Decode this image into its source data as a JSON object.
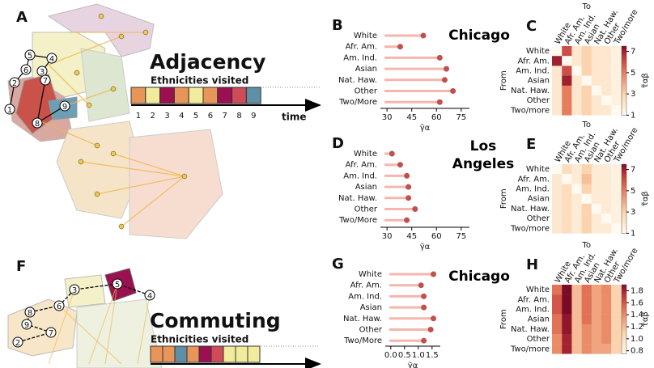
{
  "panel_a": {
    "letter": "A",
    "nodes": [
      "1",
      "2",
      "3",
      "4",
      "5",
      "6",
      "7",
      "8",
      "9"
    ]
  },
  "panel_f": {
    "letter": "F",
    "nodes": [
      "2",
      "3",
      "4",
      "5",
      "6",
      "7",
      "8",
      "9"
    ]
  },
  "adjacency": {
    "title": "Adjacency",
    "subtitle": "Ethnicities visited",
    "steps": [
      1,
      2,
      3,
      4,
      5,
      6,
      7,
      8,
      9
    ],
    "colors": [
      "#e8955a",
      "#f1ec9c",
      "#9b1050",
      "#e8955a",
      "#f1ec9c",
      "#e8955a",
      "#9b1050",
      "#cf4b58",
      "#5e8fa6"
    ],
    "axis_label": "time"
  },
  "commuting": {
    "title": "Commuting",
    "subtitle": "Ethnicities visited",
    "colors": [
      "#e8955a",
      "#e8955a",
      "#5e8fa6",
      "#e8955a",
      "#9b1050",
      "#cf4b58",
      "#f1ec9c",
      "#f1ec9c",
      "#f1ec9c"
    ]
  },
  "cities": [
    "Chicago",
    "Los Angeles",
    "Chicago"
  ],
  "chart_data": [
    {
      "type": "lollipop",
      "label": "B",
      "categories": [
        "White",
        "Afr. Am.",
        "Am. Ind.",
        "Asian",
        "Nat. Haw.",
        "Other",
        "Two/More"
      ],
      "values": [
        52,
        38,
        62,
        66,
        65,
        70,
        62
      ],
      "color": "#c0504d",
      "stem_color": "#f4b6ad",
      "xlim": [
        26,
        80
      ],
      "xticks": [
        30,
        45,
        60,
        75
      ],
      "xlabel": "γ̃α"
    },
    {
      "type": "lollipop",
      "label": "D",
      "categories": [
        "White",
        "Afr. Am.",
        "Am. Ind.",
        "Asian",
        "Nat. Haw.",
        "Other",
        "Two/More"
      ],
      "values": [
        33,
        38,
        42,
        43,
        43,
        47,
        42
      ],
      "color": "#c0504d",
      "stem_color": "#f4b6ad",
      "xlim": [
        26,
        80
      ],
      "xticks": [
        30,
        45,
        60,
        75
      ],
      "xlabel": "γ̃α"
    },
    {
      "type": "lollipop",
      "label": "G",
      "categories": [
        "White",
        "Afr. Am.",
        "Am. Ind.",
        "Asian",
        "Nat. Haw.",
        "Other",
        "Two/More"
      ],
      "values": [
        1.55,
        1.1,
        1.2,
        1.2,
        1.55,
        1.45,
        1.2
      ],
      "color": "#c0504d",
      "stem_color": "#f4b6ad",
      "xlim": [
        -0.2,
        1.8
      ],
      "xticks": [
        {
          "value": 0,
          "label": "0.0"
        },
        0.5,
        {
          "value": 1,
          "label": "1.0"
        },
        1.5
      ],
      "xlabel": "γ̃α"
    },
    {
      "type": "heatmap",
      "label": "C",
      "rows": [
        "White",
        "Afr. Am.",
        "Am. Ind.",
        "Asian",
        "Nat. Haw.",
        "Other",
        "Two/more"
      ],
      "columns": [
        "White",
        "Afr. Am.",
        "Am. Ind.",
        "Asian",
        "Nat. Haw.",
        "Other",
        "Two/more"
      ],
      "row_label": "From",
      "col_label": "To",
      "values": [
        [
          1,
          6,
          2,
          3,
          2,
          2,
          1.5
        ],
        [
          7,
          1,
          2,
          3,
          2,
          2,
          1.5
        ],
        [
          2,
          6,
          1,
          3,
          2,
          2,
          1.5
        ],
        [
          2,
          7,
          2,
          1,
          2,
          2,
          1.5
        ],
        [
          2,
          5,
          2,
          3,
          1,
          2,
          1.5
        ],
        [
          2,
          5,
          2,
          3,
          2,
          1,
          1.5
        ],
        [
          2,
          5,
          2,
          3,
          2,
          2,
          1
        ]
      ],
      "zlim": [
        1,
        7.5
      ],
      "zticks": [
        1,
        3,
        5,
        7
      ],
      "zlabel": "τ̃αβ"
    },
    {
      "type": "heatmap",
      "label": "E",
      "rows": [
        "White",
        "Afr. Am.",
        "Am. Ind.",
        "Asian",
        "Nat. Haw.",
        "Other",
        "Two/more"
      ],
      "columns": [
        "White",
        "Afr. Am.",
        "Am. Ind.",
        "Asian",
        "Nat. Haw.",
        "Other",
        "Two/more"
      ],
      "row_label": "From",
      "col_label": "To",
      "values": [
        [
          1,
          2.5,
          1.8,
          3,
          1.8,
          1.8,
          1.5
        ],
        [
          2,
          1,
          1.8,
          3.5,
          1.8,
          1.8,
          1.5
        ],
        [
          2,
          2.5,
          1,
          3,
          1.8,
          1.8,
          1.5
        ],
        [
          2,
          2.5,
          1.8,
          1,
          1.8,
          1.8,
          1.5
        ],
        [
          2,
          2.5,
          1.8,
          3,
          1,
          1.8,
          1.5
        ],
        [
          2,
          2.5,
          1.8,
          3,
          1.8,
          1,
          1.5
        ],
        [
          2,
          2.5,
          1.8,
          3,
          1.8,
          1.8,
          1
        ]
      ],
      "zlim": [
        1,
        7.5
      ],
      "zticks": [
        1,
        3,
        5,
        7
      ],
      "zlabel": "τ̃αβ"
    },
    {
      "type": "heatmap",
      "label": "H",
      "rows": [
        "White",
        "Afr. Am.",
        "Am. Ind.",
        "Asian",
        "Nat. Haw.",
        "Other",
        "Two/more"
      ],
      "columns": [
        "White",
        "Afr. Am.",
        "Am. Ind.",
        "Asian",
        "Nat. Haw.",
        "Other",
        "Two/more"
      ],
      "row_label": "From",
      "col_label": "To",
      "values": [
        [
          1.5,
          1.9,
          1.2,
          1.5,
          1.3,
          1.4,
          1.1
        ],
        [
          1.6,
          1.9,
          1.2,
          1.5,
          1.3,
          1.4,
          1.1
        ],
        [
          1.6,
          1.9,
          1.2,
          1.5,
          1.3,
          1.4,
          1.1
        ],
        [
          1.5,
          1.85,
          1.2,
          1.5,
          1.3,
          1.4,
          1.1
        ],
        [
          1.5,
          1.85,
          1.2,
          1.4,
          1.3,
          1.4,
          1.1
        ],
        [
          1.4,
          1.8,
          1.2,
          1.4,
          1.3,
          1.4,
          1.1
        ],
        [
          1.4,
          1.8,
          1.2,
          1.4,
          1.3,
          1.3,
          1.1
        ]
      ],
      "zlim": [
        0.75,
        1.9
      ],
      "zticks": [
        {
          "value": 0.8,
          "label": "0.8"
        },
        {
          "value": 1,
          "label": "1.0"
        },
        1.2,
        1.4,
        1.6,
        1.8
      ],
      "zlabel": "τ̃αβ"
    }
  ]
}
